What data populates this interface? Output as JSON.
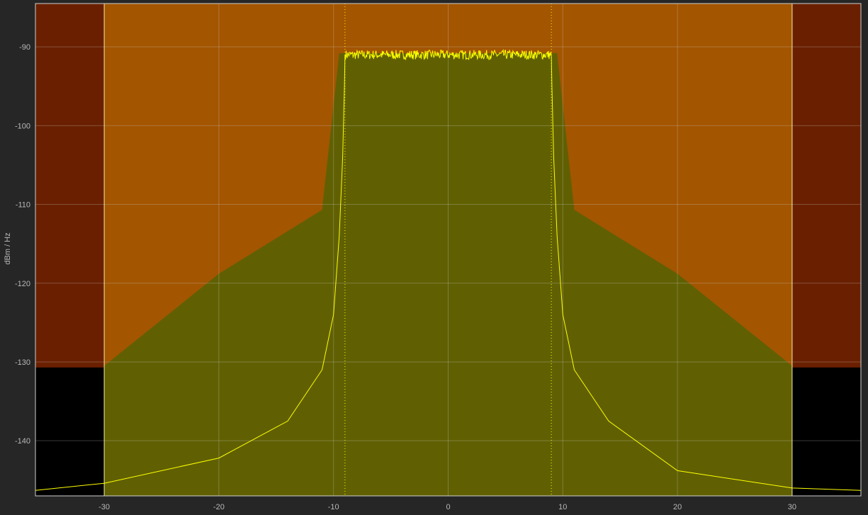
{
  "colors": {
    "background": "#262626",
    "plot_area": "#000000",
    "forbidden_region": "#6a2000",
    "mask_region": "#a35500",
    "signal_fill": "#606003",
    "trace": "#ffff00",
    "frame": "#cfcfcf"
  },
  "chart_data": {
    "type": "area",
    "title": "",
    "xlabel": "",
    "ylabel": "dBm / Hz",
    "xlim": [
      -36,
      36
    ],
    "ylim": [
      -147,
      -84.5
    ],
    "grid": true,
    "xticks": [
      -30,
      -20,
      -10,
      0,
      10,
      20,
      30
    ],
    "yticks": [
      -140,
      -130,
      -120,
      -110,
      -100,
      -90
    ],
    "mask_bounds": {
      "x": [
        -30,
        30
      ],
      "floor_y": -130.7
    },
    "spectral_mask": [
      {
        "x": -30,
        "y": -130.5
      },
      {
        "x": -20,
        "y": -118.8
      },
      {
        "x": -11,
        "y": -110.7
      },
      {
        "x": -9.5,
        "y": -90.8
      },
      {
        "x": 9.5,
        "y": -90.8
      },
      {
        "x": 11,
        "y": -110.7
      },
      {
        "x": 20,
        "y": -118.8
      },
      {
        "x": 30,
        "y": -130.5
      }
    ],
    "channel_edges": [
      -9,
      9
    ],
    "signal_psd": {
      "passband": {
        "x": [
          -9,
          9
        ],
        "level": -91,
        "ripple": 0.6
      },
      "skirts": [
        {
          "x": -36,
          "y": -146.3
        },
        {
          "x": -30,
          "y": -145.4
        },
        {
          "x": -20,
          "y": -142.2
        },
        {
          "x": -14,
          "y": -137.5
        },
        {
          "x": -11,
          "y": -131.0
        },
        {
          "x": -10,
          "y": -124.0
        },
        {
          "x": -9.5,
          "y": -114.0
        },
        {
          "x": -9.2,
          "y": -104.0
        },
        {
          "x": -9.05,
          "y": -95.0
        },
        {
          "x": -9,
          "y": -91
        },
        {
          "x": 9,
          "y": -91
        },
        {
          "x": 9.05,
          "y": -95.0
        },
        {
          "x": 9.2,
          "y": -104.0
        },
        {
          "x": 9.5,
          "y": -114.0
        },
        {
          "x": 10,
          "y": -124.0
        },
        {
          "x": 11,
          "y": -131.0
        },
        {
          "x": 14,
          "y": -137.5
        },
        {
          "x": 20,
          "y": -143.8
        },
        {
          "x": 30,
          "y": -146.0
        },
        {
          "x": 36,
          "y": -146.3
        }
      ]
    }
  }
}
